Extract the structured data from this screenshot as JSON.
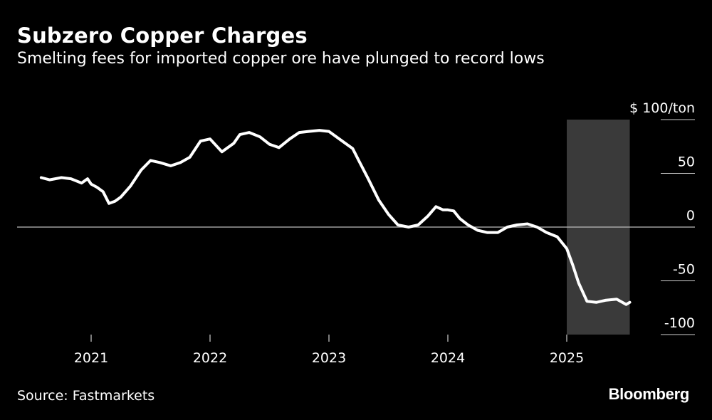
{
  "header": {
    "title": "Subzero Copper Charges",
    "subtitle": "Smelting fees for imported copper ore have plunged to record lows"
  },
  "footer": {
    "source": "Source: Fastmarkets",
    "brand": "Bloomberg"
  },
  "colors": {
    "background": "#000000",
    "line": "#ffffff",
    "highlight": "#3a3a3a",
    "zero_line": "#bdbdbd"
  },
  "chart_data": {
    "type": "line",
    "title": "Subzero Copper Charges",
    "subtitle": "Smelting fees for imported copper ore have plunged to record lows",
    "ylabel": "$ 100/ton",
    "unit_label": "$ 100/ton",
    "ylim": [
      -100,
      100
    ],
    "xlim": [
      2020.5,
      2025.6
    ],
    "y_ticks": [
      {
        "value": 100,
        "label": "$ 100/ton"
      },
      {
        "value": 50,
        "label": "50"
      },
      {
        "value": 0,
        "label": "0"
      },
      {
        "value": -50,
        "label": "-50"
      },
      {
        "value": -100,
        "label": "-100"
      }
    ],
    "x_ticks": [
      {
        "value": 2021,
        "label": "2021"
      },
      {
        "value": 2022,
        "label": "2022"
      },
      {
        "value": 2023,
        "label": "2023"
      },
      {
        "value": 2024,
        "label": "2024"
      },
      {
        "value": 2025,
        "label": "2025"
      }
    ],
    "highlight_range": [
      2025.0,
      2025.53
    ],
    "series": [
      {
        "name": "Smelting fees",
        "x": [
          2020.58,
          2020.65,
          2020.75,
          2020.83,
          2020.92,
          2020.97,
          2021.0,
          2021.05,
          2021.1,
          2021.15,
          2021.2,
          2021.25,
          2021.33,
          2021.42,
          2021.5,
          2021.58,
          2021.67,
          2021.75,
          2021.83,
          2021.92,
          2022.0,
          2022.1,
          2022.2,
          2022.25,
          2022.33,
          2022.42,
          2022.5,
          2022.58,
          2022.67,
          2022.75,
          2022.83,
          2022.92,
          2023.0,
          2023.1,
          2023.2,
          2023.25,
          2023.33,
          2023.42,
          2023.5,
          2023.58,
          2023.67,
          2023.75,
          2023.83,
          2023.9,
          2023.96,
          2024.0,
          2024.05,
          2024.1,
          2024.17,
          2024.25,
          2024.33,
          2024.42,
          2024.5,
          2024.58,
          2024.67,
          2024.75,
          2024.83,
          2024.92,
          2025.0,
          2025.05,
          2025.1,
          2025.17,
          2025.25,
          2025.33,
          2025.42,
          2025.5,
          2025.53
        ],
        "values": [
          46,
          44,
          46,
          45,
          41,
          45,
          40,
          37,
          33,
          22,
          24,
          28,
          38,
          53,
          62,
          60,
          57,
          60,
          65,
          80,
          82,
          70,
          78,
          86,
          88,
          84,
          77,
          74,
          82,
          88,
          89,
          90,
          89,
          81,
          73,
          62,
          45,
          25,
          12,
          2,
          0,
          2,
          10,
          19,
          16,
          16,
          15,
          8,
          2,
          -3,
          -5,
          -5,
          0,
          2,
          3,
          0,
          -5,
          -9,
          -20,
          -35,
          -52,
          -69,
          -70,
          -68,
          -67,
          -72,
          -70
        ]
      }
    ]
  }
}
